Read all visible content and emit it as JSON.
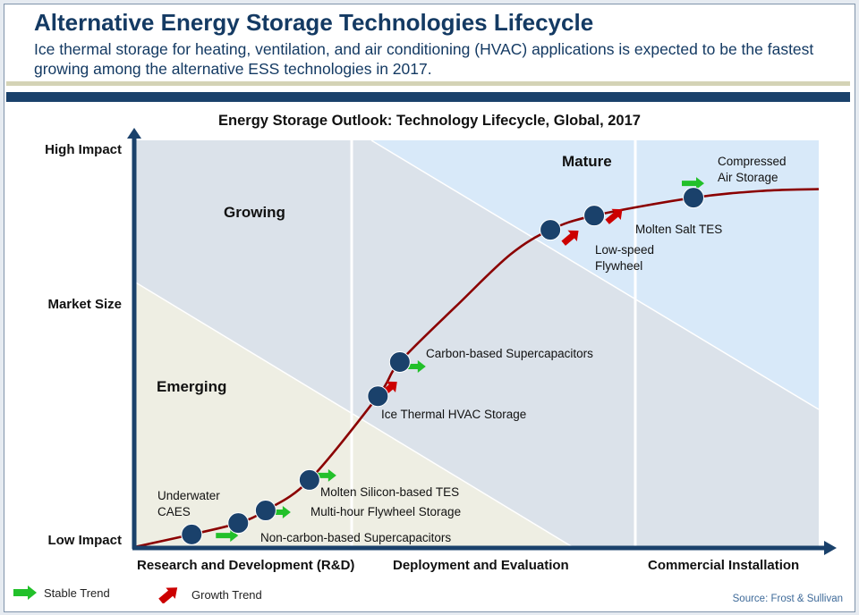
{
  "header": {
    "title": "Alternative Energy Storage Technologies Lifecycle",
    "subtitle": "Ice thermal storage for heating, ventilation, and air conditioning (HVAC) applications is expected to be the fastest growing among the alternative ESS technologies in 2017."
  },
  "colors": {
    "title": "#143a63",
    "navy": "#1a416b",
    "tan_rule": "#d4d3b6",
    "emerging_zone": "#eeeee3",
    "growing_zone": "#dbe2ea",
    "mature_zone": "#d8e9f9",
    "curve": "#8b0000",
    "dot": "#1a416b",
    "stable_arrow": "#22c02a",
    "growth_arrow": "#cc0000"
  },
  "chart_data": {
    "type": "scatter",
    "title": "Energy Storage Outlook: Technology Lifecycle, Global, 2017",
    "ylabel": "Market Size",
    "y_ticks": [
      "Low Impact",
      "Market Size",
      "High Impact"
    ],
    "x_stages": [
      "Research and Development (R&D)",
      "Deployment and Evaluation",
      "Commercial Installation"
    ],
    "zones": [
      "Emerging",
      "Growing",
      "Mature"
    ],
    "xlim": [
      0,
      100
    ],
    "ylim": [
      0,
      100
    ],
    "curve": "S-shaped lifecycle curve",
    "points": [
      {
        "label": "Underwater CAES",
        "x": 8.4,
        "y": 3.1,
        "trend": "none"
      },
      {
        "label": "Non-carbon-based Supercapacitors",
        "x": 15.2,
        "y": 5.9,
        "trend": "stable"
      },
      {
        "label": "Multi-hour Flywheel Storage",
        "x": 19.2,
        "y": 9.0,
        "trend": "stable"
      },
      {
        "label": "Molten Silicon-based TES",
        "x": 25.6,
        "y": 16.5,
        "trend": "stable"
      },
      {
        "label": "Ice Thermal HVAC Storage",
        "x": 35.6,
        "y": 37.1,
        "trend": "growth"
      },
      {
        "label": "Carbon-based Supercapacitors",
        "x": 38.8,
        "y": 45.5,
        "trend": "stable"
      },
      {
        "label": "Low-speed Flywheel",
        "x": 60.8,
        "y": 78.0,
        "trend": "growth"
      },
      {
        "label": "Molten Salt TES",
        "x": 67.2,
        "y": 81.5,
        "trend": "growth"
      },
      {
        "label": "Compressed Air Storage",
        "x": 81.7,
        "y": 85.9,
        "trend": "stable"
      }
    ],
    "legend": [
      {
        "label": "Stable Trend",
        "symbol": "green-right-arrow"
      },
      {
        "label": "Growth Trend",
        "symbol": "red-up-right-arrow"
      }
    ],
    "legend_position": "bottom-left"
  },
  "labels": {
    "underwater_caes_line1": "Underwater",
    "underwater_caes_line2": "CAES",
    "low_speed_line1": "Low-speed",
    "low_speed_line2": "Flywheel",
    "compressed_line1": "Compressed",
    "compressed_line2": "Air Storage"
  },
  "source": "Source: Frost & Sullivan"
}
